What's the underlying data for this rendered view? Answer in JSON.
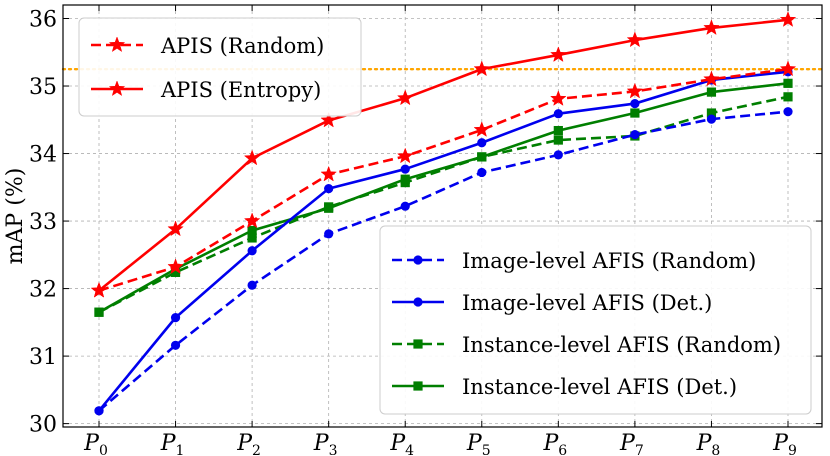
{
  "chart_data": {
    "type": "line",
    "categories": [
      "P0",
      "P1",
      "P2",
      "P3",
      "P4",
      "P5",
      "P6",
      "P7",
      "P8",
      "P9"
    ],
    "category_labels": [
      {
        "base": "P",
        "sub": "0"
      },
      {
        "base": "P",
        "sub": "1"
      },
      {
        "base": "P",
        "sub": "2"
      },
      {
        "base": "P",
        "sub": "3"
      },
      {
        "base": "P",
        "sub": "4"
      },
      {
        "base": "P",
        "sub": "5"
      },
      {
        "base": "P",
        "sub": "6"
      },
      {
        "base": "P",
        "sub": "7"
      },
      {
        "base": "P",
        "sub": "8"
      },
      {
        "base": "P",
        "sub": "9"
      }
    ],
    "ylabel": "mAP (%)",
    "ylim": [
      29.95,
      36.2
    ],
    "yticks": [
      30,
      31,
      32,
      33,
      34,
      35,
      36
    ],
    "grid": true,
    "reference_line": {
      "value": 35.25,
      "color": "#ffa500",
      "style": "dotted"
    },
    "series": [
      {
        "name": "APIS (Random)",
        "color": "#ff0000",
        "dash": "dashed",
        "marker": "star",
        "values": [
          31.97,
          32.32,
          33.0,
          33.69,
          33.96,
          34.35,
          34.81,
          34.92,
          35.1,
          35.25
        ]
      },
      {
        "name": "APIS (Entropy)",
        "color": "#ff0000",
        "dash": "solid",
        "marker": "star",
        "values": [
          31.97,
          32.88,
          33.93,
          34.49,
          34.82,
          35.25,
          35.46,
          35.68,
          35.86,
          35.98
        ]
      },
      {
        "name": "Image-level AFIS (Random)",
        "color": "#0000ee",
        "dash": "dashed",
        "marker": "circle",
        "values": [
          30.19,
          31.16,
          32.05,
          32.81,
          33.22,
          33.72,
          33.98,
          34.28,
          34.51,
          34.62
        ]
      },
      {
        "name": "Image-level AFIS (Det.)",
        "color": "#0000ee",
        "dash": "solid",
        "marker": "circle",
        "values": [
          30.19,
          31.57,
          32.56,
          33.48,
          33.77,
          34.16,
          34.59,
          34.74,
          35.09,
          35.21
        ]
      },
      {
        "name": "Instance-level AFIS (Random)",
        "color": "#007f00",
        "dash": "dashed",
        "marker": "square",
        "values": [
          31.65,
          32.24,
          32.75,
          33.21,
          33.57,
          33.95,
          34.2,
          34.26,
          34.6,
          34.84
        ]
      },
      {
        "name": "Instance-level AFIS (Det.)",
        "color": "#007f00",
        "dash": "solid",
        "marker": "square",
        "values": [
          31.65,
          32.29,
          32.86,
          33.19,
          33.62,
          33.95,
          34.34,
          34.6,
          34.91,
          35.04
        ]
      }
    ],
    "legends": [
      {
        "position": "top-left",
        "series": [
          "APIS (Random)",
          "APIS (Entropy)"
        ]
      },
      {
        "position": "lower-right",
        "series": [
          "Image-level AFIS (Random)",
          "Image-level AFIS (Det.)",
          "Instance-level AFIS (Random)",
          "Instance-level AFIS (Det.)"
        ]
      }
    ]
  }
}
